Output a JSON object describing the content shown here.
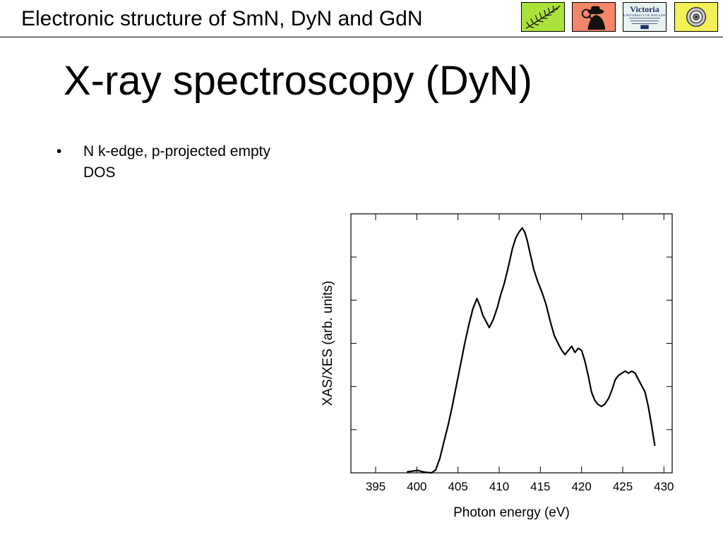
{
  "header": {
    "title": "Electronic structure of SmN, DyN and GdN",
    "logos": [
      {
        "icon": "fern-icon",
        "color": "#a9e33a"
      },
      {
        "icon": "detective-icon",
        "color": "#f3876a"
      },
      {
        "icon": "victoria-university-logo",
        "name": "Victoria",
        "subtitle": "UNIVERSITY OF WELLINGTON",
        "color": "#e8f2ee"
      },
      {
        "icon": "spiral-icon",
        "color": "#f4f05a"
      }
    ]
  },
  "slide": {
    "title": "X-ray spectroscopy (DyN)",
    "bullets": [
      {
        "marker": "•",
        "text": "N k-edge, p-projected empty DOS"
      }
    ]
  },
  "chart_data": {
    "type": "line",
    "title": "",
    "xlabel": "Photon energy (eV)",
    "ylabel": "XAS/XES (arb. units)",
    "xlim": [
      392,
      431
    ],
    "ylim": [
      0,
      11.8
    ],
    "xticks": [
      395,
      400,
      405,
      410,
      415,
      420,
      425,
      430
    ],
    "ytick_labels_shown": false,
    "grid": false,
    "series": [
      {
        "x": [
          398.8,
          399.5,
          400.1,
          400.6,
          401.2,
          401.8,
          402.3,
          402.8,
          403.3,
          403.8,
          404.3,
          404.8,
          405.3,
          405.8,
          406.3,
          406.8,
          407.3,
          407.7,
          408.0,
          408.4,
          408.8,
          409.3,
          409.8,
          410.2,
          410.6,
          411.1,
          411.6,
          412.0,
          412.4,
          412.8,
          413.1,
          413.4,
          413.8,
          414.2,
          414.7,
          415.2,
          415.7,
          416.2,
          416.7,
          417.2,
          417.6,
          418.0,
          418.4,
          418.8,
          419.2,
          419.6,
          420.0,
          420.4,
          420.8,
          421.2,
          421.6,
          422.0,
          422.4,
          422.8,
          423.3,
          423.7,
          424.1,
          424.5,
          424.9,
          425.3,
          425.7,
          426.1,
          426.5,
          426.9,
          427.3,
          427.7,
          428.1,
          428.5,
          428.9
        ],
        "y": [
          0.05,
          0.08,
          0.12,
          0.06,
          0.02,
          0.0,
          0.15,
          0.7,
          1.5,
          2.3,
          3.2,
          4.2,
          5.2,
          6.2,
          7.1,
          7.9,
          8.4,
          8.0,
          7.6,
          7.3,
          7.0,
          7.4,
          8.0,
          8.6,
          9.1,
          9.9,
          10.8,
          11.3,
          11.6,
          11.8,
          11.6,
          11.2,
          10.5,
          9.8,
          9.2,
          8.7,
          8.1,
          7.3,
          6.6,
          6.2,
          5.9,
          5.7,
          5.9,
          6.1,
          5.8,
          6.0,
          5.9,
          5.4,
          4.7,
          3.9,
          3.5,
          3.3,
          3.2,
          3.3,
          3.6,
          4.0,
          4.5,
          4.7,
          4.8,
          4.9,
          4.8,
          4.9,
          4.8,
          4.5,
          4.2,
          3.9,
          3.2,
          2.3,
          1.3
        ]
      }
    ]
  }
}
